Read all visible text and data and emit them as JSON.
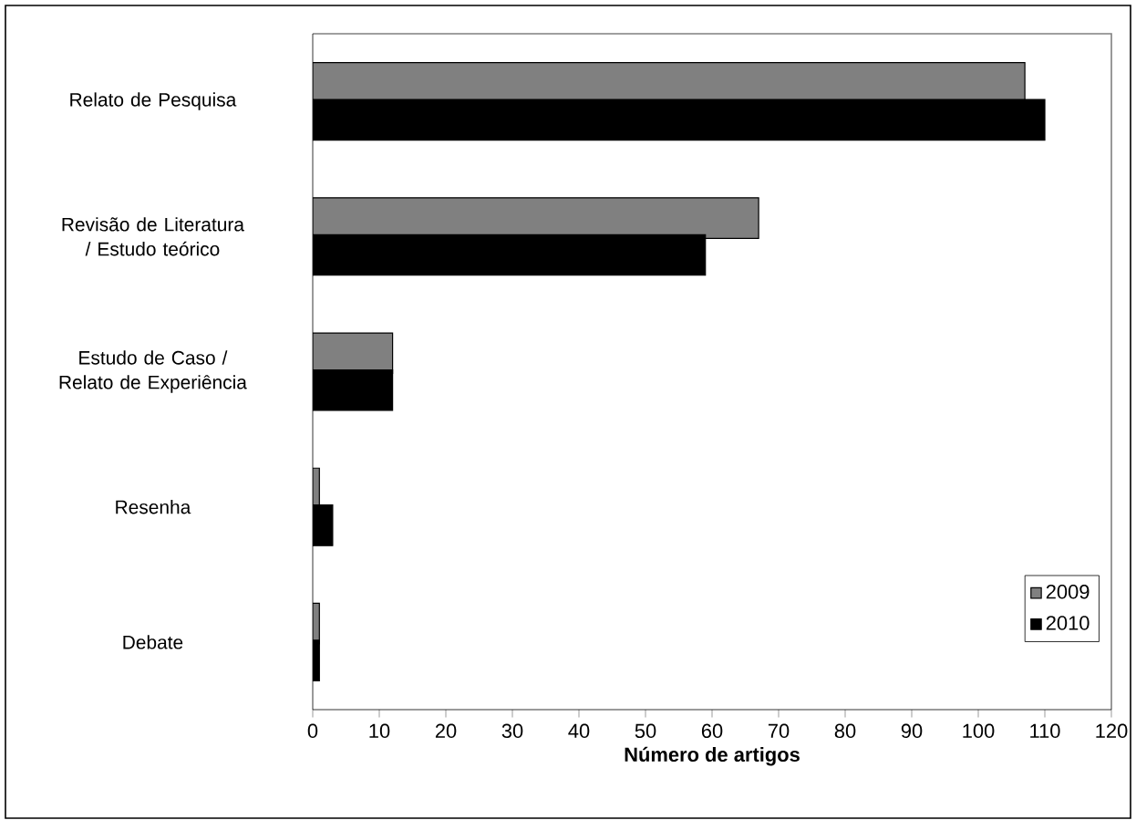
{
  "chart_data": {
    "type": "bar",
    "orientation": "horizontal",
    "xlabel": "Número de artigos",
    "categories": [
      "Relato de Pesquisa",
      "Revisão de Literatura / Estudo teórico",
      "Estudo de Caso / Relato de Experiência",
      "Resenha",
      "Debate"
    ],
    "series": [
      {
        "name": "2009",
        "color": "#808080",
        "values": [
          107,
          67,
          12,
          1,
          1
        ]
      },
      {
        "name": "2010",
        "color": "#000000",
        "values": [
          110,
          59,
          12,
          3,
          1
        ]
      }
    ],
    "xlim": [
      0,
      120
    ],
    "xticks": [
      0,
      10,
      20,
      30,
      40,
      50,
      60,
      70,
      80,
      90,
      100,
      110,
      120
    ],
    "grid": false,
    "legend": "bottom right"
  }
}
